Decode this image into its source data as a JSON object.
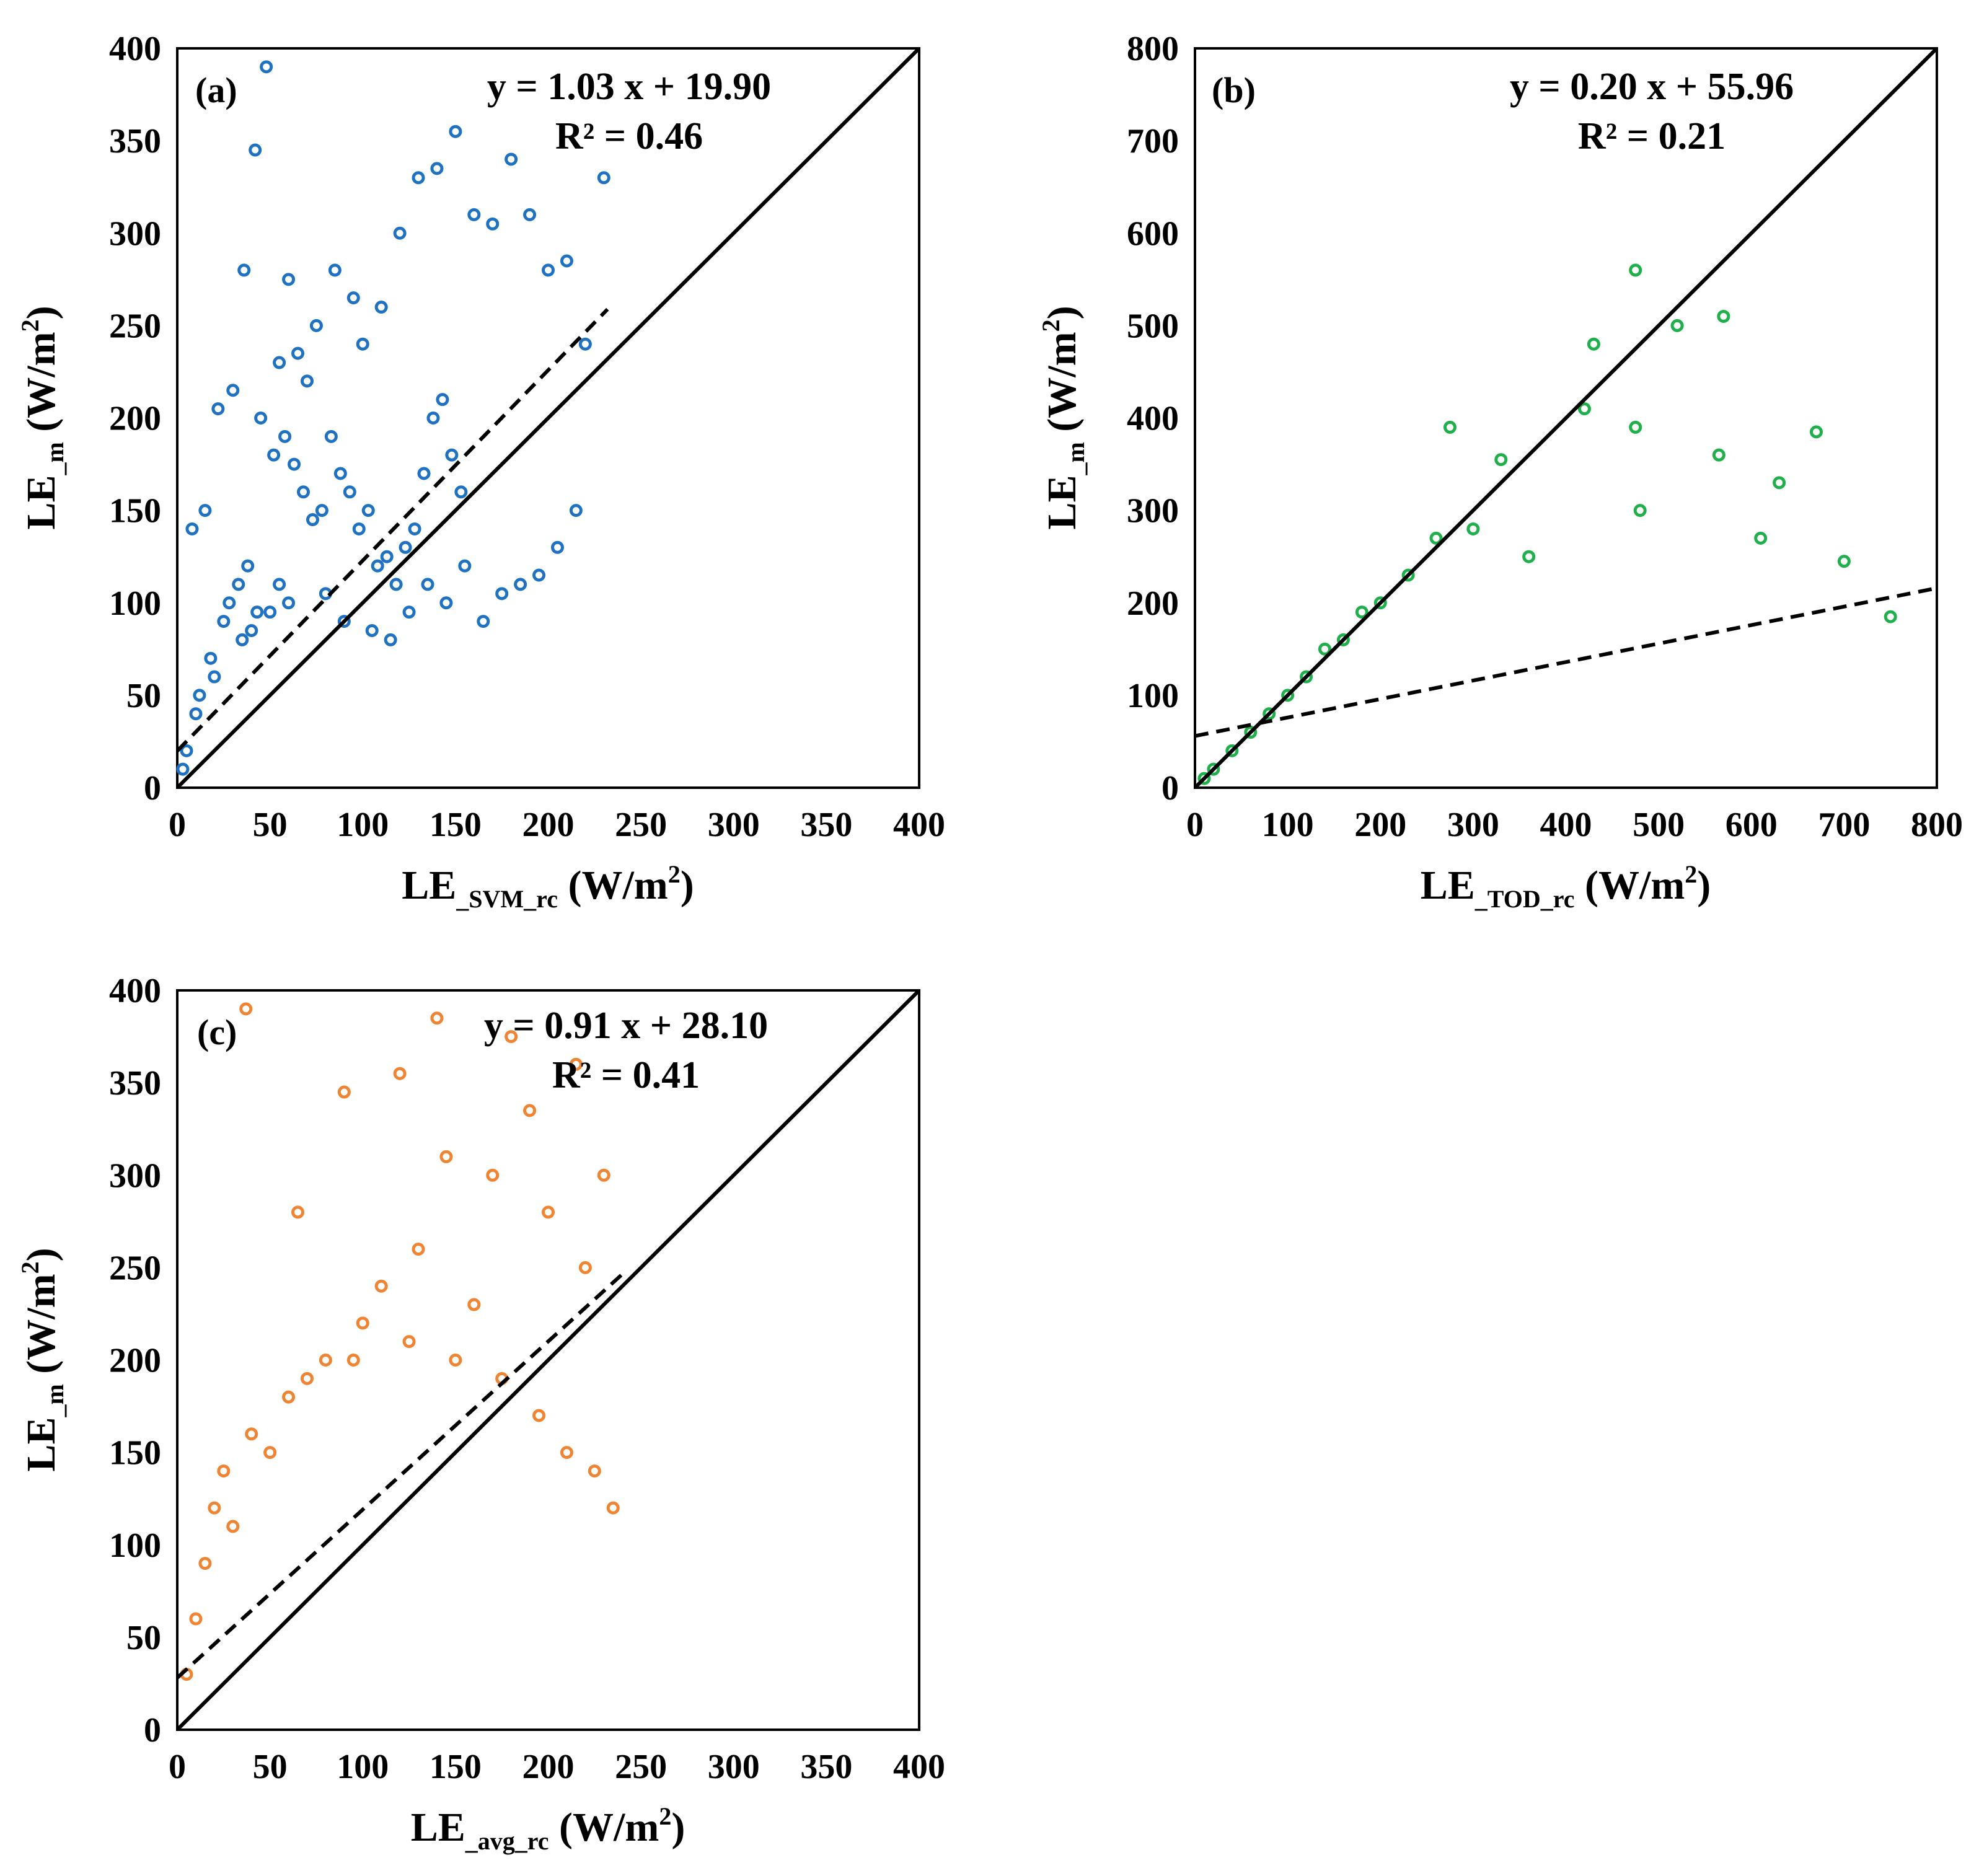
{
  "chart_data": [
    {
      "type": "scatter",
      "panel_label": "(a)",
      "xlabel": {
        "main": "LE",
        "sub": "_SVM_rc",
        "unit_pre": " (W/m",
        "unit_sup": "2",
        "unit_post": ")"
      },
      "ylabel": {
        "main": "LE",
        "sub": "_m",
        "unit_pre": " (W/m",
        "unit_sup": "2",
        "unit_post": ")"
      },
      "xlim": [
        0,
        400
      ],
      "ylim": [
        0,
        400
      ],
      "xticks": [
        "0",
        "50",
        "100",
        "150",
        "200",
        "250",
        "300",
        "350",
        "400"
      ],
      "yticks": [
        "0",
        "50",
        "100",
        "150",
        "200",
        "250",
        "300",
        "350",
        "400"
      ],
      "equation": "y = 1.03 x + 19.90",
      "r2": "R² = 0.46",
      "fit": {
        "slope": 1.03,
        "intercept": 19.9,
        "x_range": [
          0,
          232
        ]
      },
      "one_to_one": true,
      "marker_color": "#1f72c2",
      "series": [
        {
          "x": [
            48,
            42,
            36,
            30,
            22,
            15,
            8,
            60,
            70,
            55,
            65,
            75,
            85,
            95,
            100,
            110,
            120,
            130,
            140,
            150,
            160,
            170,
            180,
            190,
            200,
            210,
            220,
            230,
            45,
            52,
            58,
            63,
            68,
            73,
            78,
            83,
            88,
            93,
            98,
            103,
            108,
            113,
            118,
            123,
            128,
            133,
            138,
            143,
            148,
            153,
            25,
            28,
            33,
            38,
            43,
            18,
            12,
            5,
            3,
            10,
            20,
            35,
            40,
            50,
            55,
            60,
            80,
            90,
            105,
            115,
            125,
            135,
            145,
            155,
            165,
            175,
            185,
            195,
            205,
            215
          ],
          "y": [
            390,
            345,
            280,
            215,
            205,
            150,
            140,
            275,
            220,
            230,
            235,
            250,
            280,
            265,
            240,
            260,
            300,
            330,
            335,
            355,
            310,
            305,
            340,
            310,
            280,
            285,
            240,
            330,
            200,
            180,
            190,
            175,
            160,
            145,
            150,
            190,
            170,
            160,
            140,
            150,
            120,
            125,
            110,
            130,
            140,
            170,
            200,
            210,
            180,
            160,
            90,
            100,
            110,
            120,
            95,
            70,
            50,
            20,
            10,
            40,
            60,
            80,
            85,
            95,
            110,
            100,
            105,
            90,
            85,
            80,
            95,
            110,
            100,
            120,
            90,
            105,
            110,
            115,
            130,
            150
          ]
        }
      ]
    },
    {
      "type": "scatter",
      "panel_label": "(b)",
      "xlabel": {
        "main": "LE",
        "sub": "_TOD_rc",
        "unit_pre": " (W/m",
        "unit_sup": "2",
        "unit_post": ")"
      },
      "ylabel": {
        "main": "LE",
        "sub": "_m",
        "unit_pre": " (W/m",
        "unit_sup": "2",
        "unit_post": ")"
      },
      "xlim": [
        0,
        800
      ],
      "ylim": [
        0,
        800
      ],
      "xticks": [
        "0",
        "100",
        "200",
        "300",
        "400",
        "500",
        "600",
        "700",
        "800"
      ],
      "yticks": [
        "0",
        "100",
        "200",
        "300",
        "400",
        "500",
        "600",
        "700",
        "800"
      ],
      "equation": "y = 0.20 x + 55.96",
      "r2": "R² = 0.21",
      "fit": {
        "slope": 0.2,
        "intercept": 55.96,
        "x_range": [
          0,
          800
        ]
      },
      "one_to_one": true,
      "marker_color": "#1faf4b",
      "series": [
        {
          "x": [
            475,
            430,
            520,
            570,
            275,
            330,
            420,
            475,
            565,
            670,
            630,
            750,
            700,
            610,
            480,
            360,
            300,
            260,
            230,
            200,
            180,
            160,
            140,
            120,
            100,
            80,
            60,
            40,
            20,
            10
          ],
          "y": [
            560,
            480,
            500,
            510,
            390,
            355,
            410,
            390,
            360,
            385,
            330,
            185,
            245,
            270,
            300,
            250,
            280,
            270,
            230,
            200,
            190,
            160,
            150,
            120,
            100,
            80,
            60,
            40,
            20,
            10
          ]
        }
      ]
    },
    {
      "type": "scatter",
      "panel_label": "(c)",
      "xlabel": {
        "main": "LE",
        "sub": "_avg_rc",
        "unit_pre": " (W/m",
        "unit_sup": "2",
        "unit_post": ")"
      },
      "ylabel": {
        "main": "LE",
        "sub": "_m",
        "unit_pre": " (W/m",
        "unit_sup": "2",
        "unit_post": ")"
      },
      "xlim": [
        0,
        400
      ],
      "ylim": [
        0,
        400
      ],
      "xticks": [
        "0",
        "50",
        "100",
        "150",
        "200",
        "250",
        "300",
        "350",
        "400"
      ],
      "yticks": [
        "0",
        "50",
        "100",
        "150",
        "200",
        "250",
        "300",
        "350",
        "400"
      ],
      "equation": "y = 0.91 x + 28.10",
      "r2": "R² = 0.41",
      "fit": {
        "slope": 0.91,
        "intercept": 28.1,
        "x_range": [
          0,
          240
        ]
      },
      "one_to_one": true,
      "marker_color": "#ef8433",
      "series": [
        {
          "x": [
            37,
            120,
            180,
            140,
            215,
            230,
            190,
            170,
            200,
            90,
            65,
            220,
            160,
            145,
            130,
            110,
            100,
            80,
            60,
            40,
            25,
            20,
            15,
            10,
            5,
            30,
            50,
            70,
            95,
            125,
            150,
            175,
            195,
            210,
            225,
            235
          ],
          "y": [
            390,
            355,
            375,
            385,
            360,
            300,
            335,
            300,
            280,
            345,
            280,
            250,
            230,
            310,
            260,
            240,
            220,
            200,
            180,
            160,
            140,
            120,
            90,
            60,
            30,
            110,
            150,
            190,
            200,
            210,
            200,
            190,
            170,
            150,
            140,
            120
          ]
        }
      ]
    }
  ]
}
